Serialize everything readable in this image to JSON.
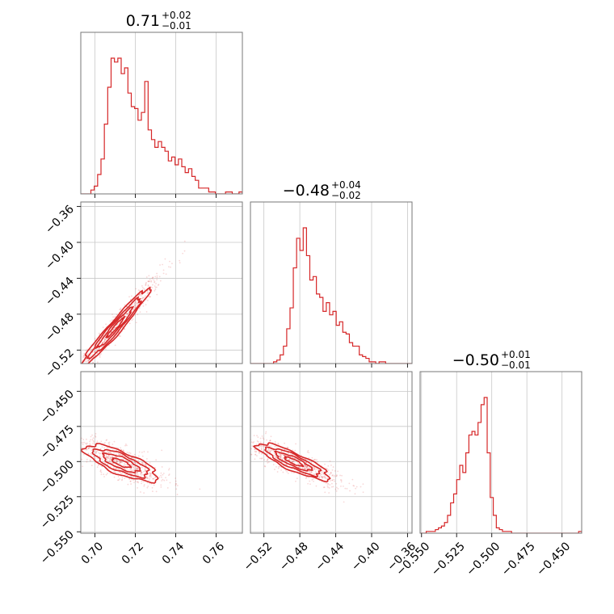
{
  "chart_data": {
    "type": "corner",
    "color": "#d62728",
    "parameters": [
      {
        "name": "",
        "range": [
          0.693,
          0.773
        ],
        "ticks": [
          0.7,
          0.72,
          0.74,
          0.76
        ],
        "tick_labels": [
          "0.70",
          "0.72",
          "0.74",
          "0.76"
        ],
        "title": {
          "value": "0.71",
          "plus": "+0.02",
          "minus": "−0.01"
        }
      },
      {
        "name": "",
        "range": [
          -0.535,
          -0.355
        ],
        "ticks": [
          -0.52,
          -0.48,
          -0.44,
          -0.4,
          -0.36
        ],
        "tick_labels": [
          "−0.52",
          "−0.48",
          "−0.44",
          "−0.40",
          "−0.36"
        ],
        "title": {
          "value": "−0.48",
          "plus": "+0.04",
          "minus": "−0.02"
        }
      },
      {
        "name": "",
        "range": [
          -0.551,
          -0.436
        ],
        "ticks": [
          -0.55,
          -0.525,
          -0.5,
          -0.475,
          -0.45
        ],
        "tick_labels": [
          "−0.550",
          "−0.525",
          "−0.500",
          "−0.475",
          "−0.450"
        ],
        "title": {
          "value": "−0.50",
          "plus": "+0.01",
          "minus": "−0.01"
        }
      }
    ],
    "histograms": [
      {
        "bin_start": 0.693,
        "bin_end": 0.773,
        "counts": [
          0,
          0,
          0,
          2,
          4,
          10,
          18,
          36,
          55,
          70,
          68,
          70,
          62,
          65,
          52,
          45,
          44,
          38,
          42,
          58,
          33,
          28,
          24,
          27,
          24,
          22,
          17,
          19,
          15,
          18,
          14,
          11,
          13,
          9,
          7,
          3,
          3,
          3,
          1,
          1,
          0,
          0,
          0,
          1,
          1,
          0,
          0,
          1
        ]
      },
      {
        "bin_start": -0.535,
        "bin_end": -0.355,
        "counts": [
          0,
          0,
          0,
          0,
          0,
          0,
          0,
          1,
          2,
          5,
          10,
          20,
          32,
          55,
          72,
          65,
          78,
          62,
          48,
          50,
          40,
          38,
          30,
          35,
          28,
          30,
          22,
          24,
          18,
          17,
          12,
          10,
          10,
          5,
          4,
          3,
          1,
          1,
          0,
          1,
          1,
          0,
          0,
          0,
          0,
          0,
          0,
          0,
          0
        ]
      },
      {
        "bin_start": -0.551,
        "bin_end": -0.436,
        "counts": [
          0,
          0,
          1,
          1,
          1,
          2,
          3,
          4,
          6,
          10,
          17,
          22,
          30,
          38,
          34,
          45,
          55,
          57,
          55,
          62,
          72,
          76,
          45,
          20,
          10,
          3,
          2,
          1,
          1,
          1,
          0,
          0,
          0,
          0,
          0,
          0,
          0,
          0,
          0,
          0,
          0,
          0,
          0,
          0,
          0,
          0,
          0,
          0,
          0,
          0,
          0,
          0,
          1
        ]
      }
    ],
    "pairs": [
      {
        "x": 0,
        "y": 1,
        "center": [
          0.71,
          -0.495
        ],
        "rho": 0.97,
        "sx": 0.0085,
        "sy": 0.022,
        "contour_levels": [
          0.5,
          1.0,
          1.5,
          2.0
        ]
      },
      {
        "x": 0,
        "y": 2,
        "center": [
          0.713,
          -0.501
        ],
        "rho": -0.75,
        "sx": 0.009,
        "sy": 0.0065,
        "contour_levels": [
          0.5,
          1.0,
          1.5,
          2.0
        ]
      },
      {
        "x": 1,
        "y": 2,
        "center": [
          -0.487,
          -0.5
        ],
        "rho": -0.85,
        "sx": 0.02,
        "sy": 0.0065,
        "contour_levels": [
          0.5,
          1.0,
          1.5,
          2.0
        ]
      }
    ],
    "grid": true
  }
}
